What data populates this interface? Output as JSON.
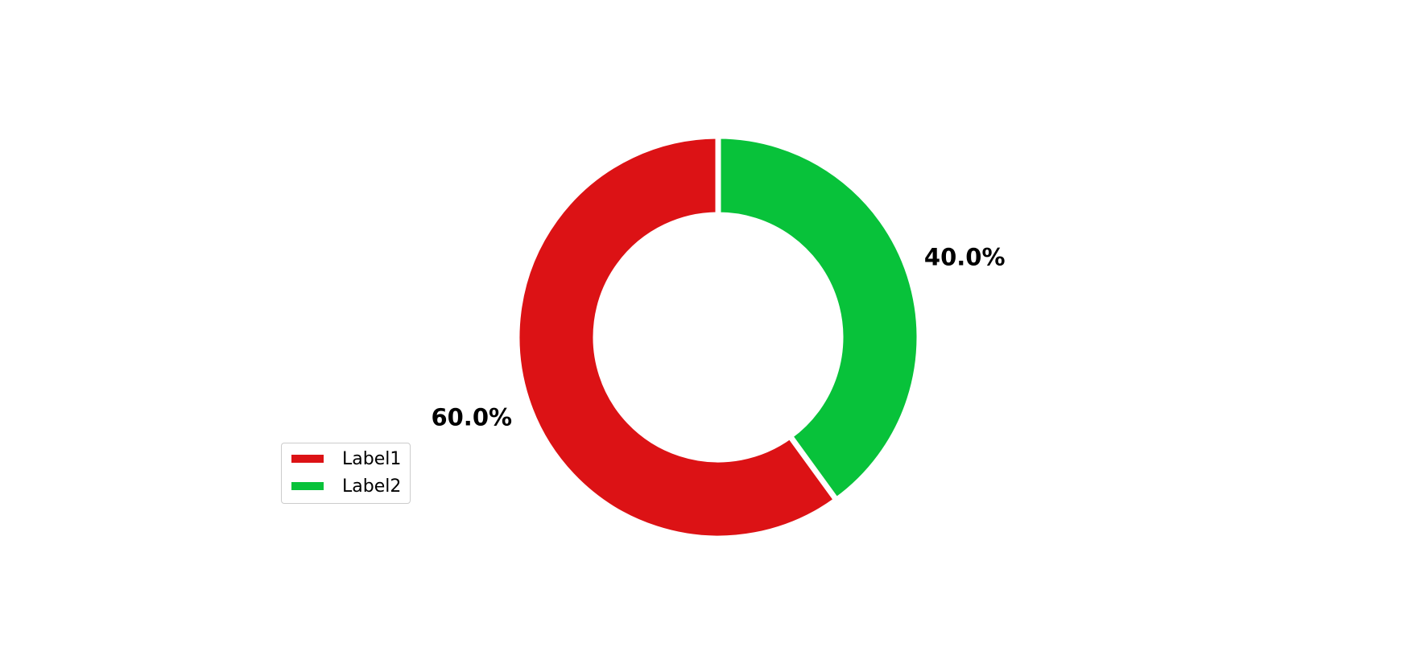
{
  "chart_data": {
    "type": "pie",
    "style": "donut",
    "title": "",
    "start_angle_deg": 90,
    "direction": "counterclockwise",
    "slices": [
      {
        "label": "Label1",
        "value": 60.0,
        "pct_label": "60.0%",
        "color": "#dc1215"
      },
      {
        "label": "Label2",
        "value": 40.0,
        "pct_label": "40.0%",
        "color": "#08c23a"
      }
    ],
    "legend_placement": "lower-left",
    "edge_color": "#ffffff"
  }
}
